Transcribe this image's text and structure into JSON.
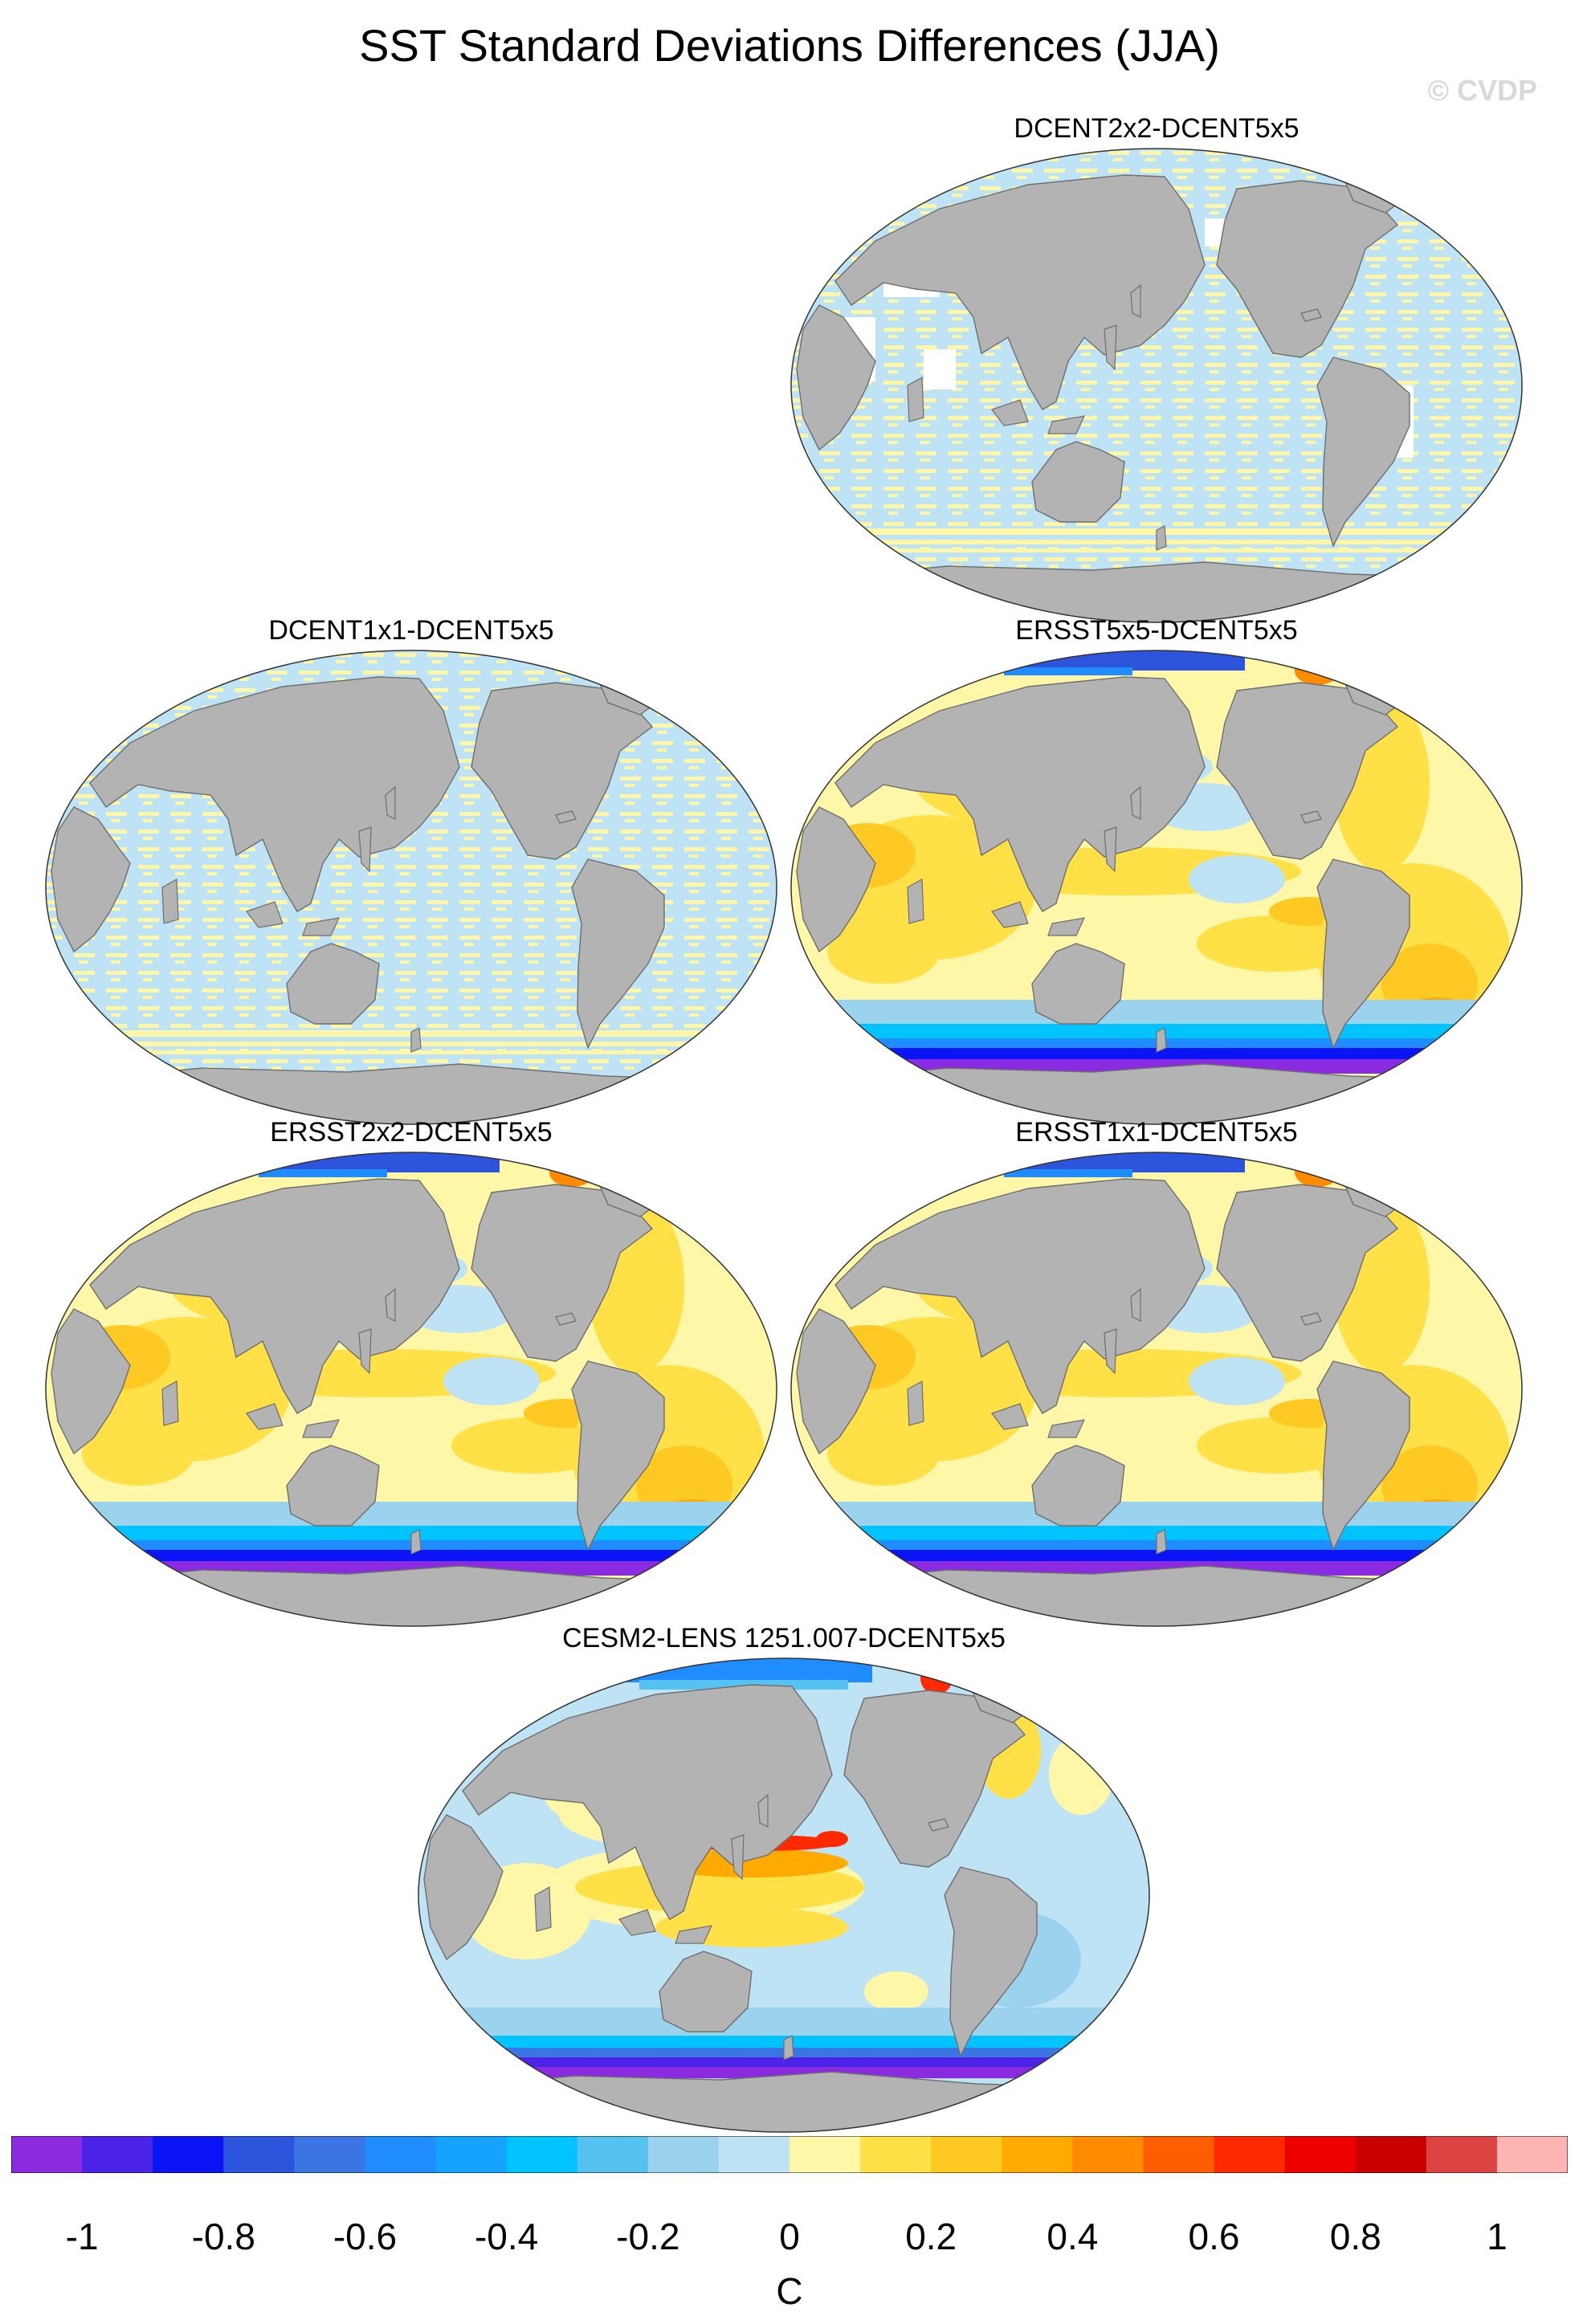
{
  "title": "SST Standard Deviations Differences (JJA)",
  "credit": "© CVDP",
  "colors": {
    "land": "#b3b3b3",
    "ocean_background": "#ffffff",
    "coast": "#6e6e6e"
  },
  "panels": [
    {
      "id": "p1",
      "title": "DCENT2x2-DCENT5x5",
      "pattern": "stripes",
      "gaps": "coarse"
    },
    {
      "id": "p2",
      "title": "DCENT1x1-DCENT5x5",
      "pattern": "stripes",
      "gaps": "full"
    },
    {
      "id": "p3",
      "title": "ERSST5x5-DCENT5x5",
      "pattern": "ersst"
    },
    {
      "id": "p4",
      "title": "ERSST2x2-DCENT5x5",
      "pattern": "ersst"
    },
    {
      "id": "p5",
      "title": "ERSST1x1-DCENT5x5",
      "pattern": "ersst"
    },
    {
      "id": "p6",
      "title": "CESM2-LENS 1251.007-DCENT5x5",
      "pattern": "cesm"
    }
  ],
  "colorbar": {
    "units": "C",
    "colors": [
      "#8a2be2",
      "#4b23e6",
      "#0a14f5",
      "#2c54dd",
      "#3a75e3",
      "#1f8cff",
      "#16a3ff",
      "#00c3ff",
      "#55c2f0",
      "#9bd2ee",
      "#bde3f5",
      "#fff7a8",
      "#ffe046",
      "#ffc924",
      "#ffaa00",
      "#ff8c00",
      "#ff5e00",
      "#ff2a00",
      "#ee0000",
      "#c80000",
      "#dc4444",
      "#ffb4b4"
    ],
    "labels": [
      "-1",
      "-0.8",
      "-0.6",
      "-0.4",
      "-0.2",
      "0",
      "0.2",
      "0.4",
      "0.6",
      "0.8",
      "1"
    ]
  }
}
